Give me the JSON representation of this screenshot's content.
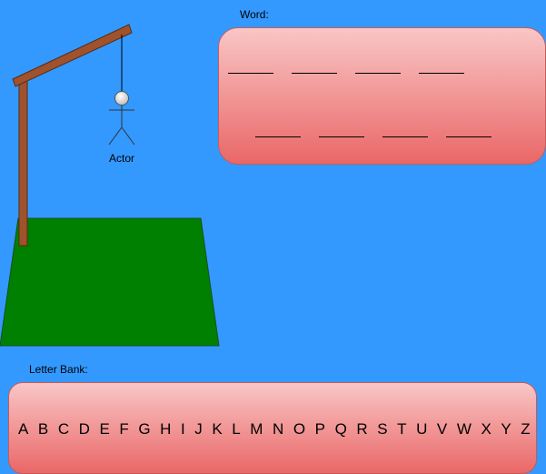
{
  "word_section": {
    "label": "Word:",
    "rows": [
      4,
      4
    ]
  },
  "actor": {
    "label": "Actor"
  },
  "letter_bank": {
    "label": "Letter Bank:",
    "letters": [
      "A",
      "B",
      "C",
      "D",
      "E",
      "F",
      "G",
      "H",
      "I",
      "J",
      "K",
      "L",
      "M",
      "N",
      "O",
      "P",
      "Q",
      "R",
      "S",
      "T",
      "U",
      "V",
      "W",
      "X",
      "Y",
      "Z"
    ]
  },
  "colors": {
    "background": "#3399ff",
    "ground": "#008000",
    "gallows": "#a0522d",
    "panel_top": "#f9c6c6",
    "panel_bottom": "#ea6767"
  }
}
